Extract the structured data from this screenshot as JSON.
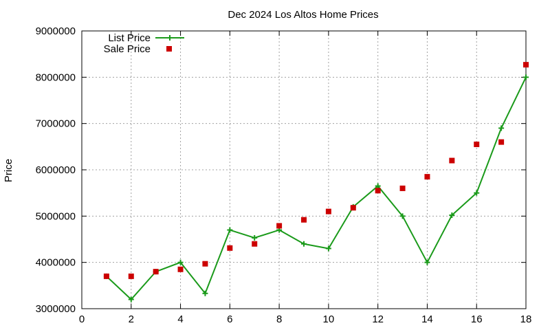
{
  "chart_data": {
    "type": "line",
    "title": "Dec 2024 Los Altos Home Prices",
    "xlabel": "",
    "ylabel": "Price",
    "xlim": [
      0,
      18
    ],
    "ylim": [
      3000000,
      9000000
    ],
    "x_ticks": [
      "0",
      "2",
      "4",
      "6",
      "8",
      "10",
      "12",
      "14",
      "16",
      "18"
    ],
    "y_ticks": [
      "3000000",
      "4000000",
      "5000000",
      "6000000",
      "7000000",
      "8000000",
      "9000000"
    ],
    "grid": true,
    "legend_position": "top-left",
    "series": [
      {
        "name": "List Price",
        "style": "line+cross",
        "color": "#1a9a1a",
        "x": [
          1,
          2,
          3,
          4,
          5,
          6,
          7,
          8,
          9,
          10,
          11,
          12,
          13,
          14,
          15,
          16,
          17,
          18
        ],
        "values": [
          3700000,
          3200000,
          3800000,
          4000000,
          3330000,
          4700000,
          4530000,
          4700000,
          4400000,
          4300000,
          5200000,
          5650000,
          5000000,
          4000000,
          5020000,
          5500000,
          6900000,
          8000000
        ]
      },
      {
        "name": "Sale Price",
        "style": "square",
        "color": "#cc0000",
        "x": [
          1,
          2,
          3,
          4,
          5,
          6,
          7,
          8,
          9,
          10,
          11,
          12,
          13,
          14,
          15,
          16,
          17,
          18
        ],
        "values": [
          3700000,
          3700000,
          3800000,
          3850000,
          3970000,
          4310000,
          4400000,
          4790000,
          4920000,
          5100000,
          5180000,
          5550000,
          5600000,
          5850000,
          6200000,
          6550000,
          6600000,
          8270000
        ]
      }
    ]
  }
}
